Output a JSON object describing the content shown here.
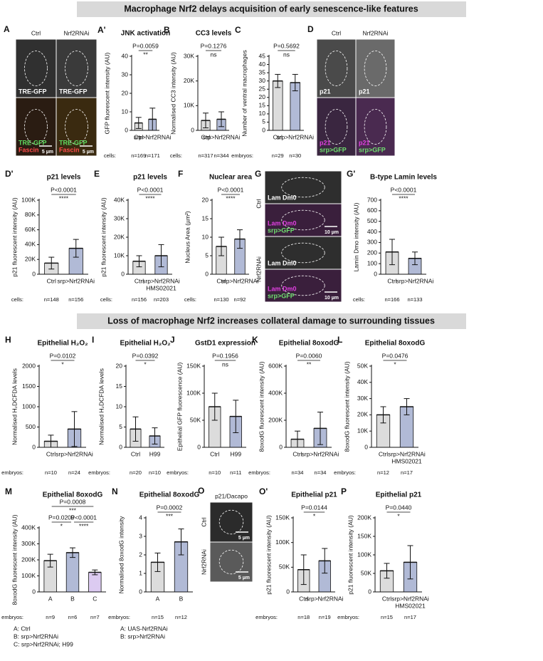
{
  "headers": [
    "Macrophage Nrf2 delays acquisition of early senescence-like features",
    "Loss of macrophage Nrf2 increases collateral damage to surrounding tissues"
  ],
  "image_panels": [
    {
      "letter": "A",
      "columns": [
        "Ctrl",
        "Nrf2RNAi"
      ],
      "rows": [],
      "tiles": [
        [
          "TRE-GFP"
        ],
        [
          "TRE-GFP"
        ],
        [
          "TRE-GFP",
          "Fascin",
          "5 µm"
        ],
        [
          "TRE-GFP",
          "Fascin",
          "5 µm"
        ]
      ]
    },
    {
      "letter": "D",
      "columns": [
        "Ctrl",
        "Nrf2RNAi"
      ],
      "rows": [],
      "tiles": [
        [
          "p21"
        ],
        [
          "p21"
        ],
        [
          "p21",
          "srp>GFP"
        ],
        [
          "p21",
          "srp>GFP"
        ]
      ]
    },
    {
      "letter": "G",
      "columns": [],
      "rows": [
        "Ctrl",
        "Nrf2RNAi"
      ],
      "tiles": [
        [
          "Lam Dm0"
        ],
        [
          "Lam Dm0",
          "srp>GFP",
          "10 µm"
        ],
        [
          "Lam Dm0"
        ],
        [
          "Lam Dm0",
          "srp>GFP",
          "10 µm"
        ]
      ]
    },
    {
      "letter": "O",
      "title": "p21/Dacapo",
      "columns": [],
      "rows": [
        "Ctrl",
        "Nrf2RNAi"
      ],
      "tiles": [
        [
          "5 µm"
        ],
        [
          "5 µm"
        ]
      ]
    }
  ],
  "chart_data": [
    {
      "type": "bar",
      "letter": "A'",
      "title": "JNK activation",
      "ylabel": "GFP fluorescent intensity (AU)",
      "categories": [
        [
          "Ctrl"
        ],
        [
          "srp>Nrf2RNAi"
        ]
      ],
      "values": [
        4,
        6
      ],
      "errors": [
        3,
        6
      ],
      "colors": [
        "#9b9b9b",
        "#1f3a8a"
      ],
      "ylim": [
        0,
        40
      ],
      "yticks": [
        0,
        10,
        20,
        30,
        40
      ],
      "n_label": "cells:",
      "n": [
        "n=169",
        "n=171"
      ],
      "comparisons": [
        {
          "p": "P=0.0059",
          "sig": "**"
        }
      ]
    },
    {
      "type": "bar",
      "letter": "B",
      "title": "CC3 levels",
      "ylabel": "Normalised CC3 intensity (AU)",
      "categories": [
        [
          "Ctrl"
        ],
        [
          "srp>Nrf2RNAi"
        ]
      ],
      "values": [
        4000,
        4500
      ],
      "errors": [
        3000,
        3000
      ],
      "colors": [
        "#9b9b9b",
        "#1f3a8a"
      ],
      "ylim": [
        0,
        30000
      ],
      "yticks": [
        0,
        {
          "value": 10000,
          "label": "10K"
        },
        {
          "value": 20000,
          "label": "20K"
        },
        {
          "value": 30000,
          "label": "30K"
        }
      ],
      "n_label": "cells:",
      "n": [
        "n=317",
        "n=344"
      ],
      "comparisons": [
        {
          "p": "P=0.1276",
          "sig": "ns"
        }
      ]
    },
    {
      "type": "bar",
      "letter": "C",
      "title": "",
      "ylabel": "Number of ventral macrophages",
      "categories": [
        [
          "Ctrl"
        ],
        [
          "srp>Nrf2RNAi"
        ]
      ],
      "values": [
        30,
        29
      ],
      "errors": [
        4,
        5
      ],
      "colors": [
        "#9b9b9b",
        "#1f3a8a"
      ],
      "ylim": [
        0,
        45
      ],
      "yticks": [
        0,
        5,
        10,
        15,
        20,
        25,
        30,
        35,
        40,
        45
      ],
      "n_label": "embryos:",
      "n": [
        "n=29",
        "n=30"
      ],
      "comparisons": [
        {
          "p": "P=0.5692",
          "sig": "ns"
        }
      ]
    },
    {
      "type": "bar",
      "letter": "D'",
      "title": "p21 levels",
      "ylabel": "p21 fluorescent intensity (AU)",
      "categories": [
        [
          "Ctrl"
        ],
        [
          "srp>Nrf2RNAi"
        ]
      ],
      "values": [
        15000,
        35000
      ],
      "errors": [
        8000,
        12000
      ],
      "colors": [
        "#9b9b9b",
        "#1f3a8a"
      ],
      "ylim": [
        0,
        100000
      ],
      "yticks": [
        0,
        {
          "value": 20000,
          "label": "20K"
        },
        {
          "value": 40000,
          "label": "40K"
        },
        {
          "value": 60000,
          "label": "60K"
        },
        {
          "value": 80000,
          "label": "80K"
        },
        {
          "value": 100000,
          "label": "100K"
        }
      ],
      "n_label": "cells:",
      "n": [
        "n=148",
        "n=156"
      ],
      "comparisons": [
        {
          "p": "P<0.0001",
          "sig": "****"
        }
      ]
    },
    {
      "type": "bar",
      "letter": "E",
      "title": "p21 levels",
      "ylabel": "p21 fluorescent intensity (AU)",
      "categories": [
        [
          "Ctrl"
        ],
        [
          "srp>Nrf2RNAi",
          "HMS02021"
        ]
      ],
      "values": [
        7000,
        10000
      ],
      "errors": [
        3000,
        6000
      ],
      "colors": [
        "#9b9b9b",
        "#1f3a8a"
      ],
      "ylim": [
        0,
        40000
      ],
      "yticks": [
        0,
        {
          "value": 10000,
          "label": "10K"
        },
        {
          "value": 20000,
          "label": "20K"
        },
        {
          "value": 30000,
          "label": "30K"
        },
        {
          "value": 40000,
          "label": "40K"
        }
      ],
      "n_label": "cells:",
      "n": [
        "n=156",
        "n=203"
      ],
      "comparisons": [
        {
          "p": "P<0.0001",
          "sig": "****"
        }
      ]
    },
    {
      "type": "bar",
      "letter": "F",
      "title": "Nuclear area",
      "ylabel": "Nucleus Area (µm²)",
      "categories": [
        [
          "Ctrl"
        ],
        [
          "srp>Nrf2RNAi"
        ]
      ],
      "values": [
        7.5,
        9.5
      ],
      "errors": [
        2.5,
        2.5
      ],
      "colors": [
        "#9b9b9b",
        "#1f3a8a"
      ],
      "ylim": [
        0,
        20
      ],
      "yticks": [
        0,
        5,
        10,
        15,
        20
      ],
      "n_label": "cells:",
      "n": [
        "n=130",
        "n=92"
      ],
      "comparisons": [
        {
          "p": "P<0.0001",
          "sig": "****"
        }
      ]
    },
    {
      "type": "bar",
      "letter": "G'",
      "title": "B-type Lamin levels",
      "ylabel": "Lamin Dmo intensity (AU)",
      "categories": [
        [
          "Ctrl"
        ],
        [
          "srp>Nrf2RNAi"
        ]
      ],
      "values": [
        210,
        150
      ],
      "errors": [
        120,
        60
      ],
      "colors": [
        "#9b9b9b",
        "#1f3a8a"
      ],
      "ylim": [
        0,
        700
      ],
      "yticks": [
        0,
        100,
        200,
        300,
        400,
        500,
        600,
        700
      ],
      "n_label": "cells:",
      "n": [
        "n=166",
        "n=133"
      ],
      "comparisons": [
        {
          "p": "P<0.0001",
          "sig": "****"
        }
      ]
    },
    {
      "type": "bar",
      "letter": "H",
      "title": "Epithelial H₂O₂",
      "ylabel": "Normalised H₂DCFDA levels",
      "categories": [
        [
          "Ctrl"
        ],
        [
          "srp>Nrf2RNAi"
        ]
      ],
      "values": [
        150,
        450
      ],
      "errors": [
        150,
        430
      ],
      "colors": [
        "#9b9b9b",
        "#1f3a8a"
      ],
      "ylim": [
        0,
        2000
      ],
      "yticks": [
        0,
        500,
        1000,
        1500,
        2000
      ],
      "n_label": "embryos:",
      "n": [
        "n=10",
        "n=24"
      ],
      "comparisons": [
        {
          "p": "P=0.0102",
          "sig": "*"
        }
      ]
    },
    {
      "type": "bar",
      "letter": "I",
      "title": "Epithelial H₂O₂",
      "ylabel": "Normalised H₂DCFDA levels",
      "categories": [
        [
          "Ctrl"
        ],
        [
          "H99"
        ]
      ],
      "values": [
        4.5,
        2.8
      ],
      "errors": [
        3,
        2
      ],
      "colors": [
        "#9b9b9b",
        "#1f3a8a"
      ],
      "ylim": [
        0,
        20
      ],
      "yticks": [
        0,
        5,
        10,
        15,
        20
      ],
      "n_label": "embryos:",
      "n": [
        "n=20",
        "n=10"
      ],
      "comparisons": [
        {
          "p": "P=0.0392",
          "sig": "*"
        }
      ]
    },
    {
      "type": "bar",
      "letter": "J",
      "title": "GstD1 expression",
      "ylabel": "Epithelial GFP fluorescence (AU)",
      "categories": [
        [
          "Ctrl"
        ],
        [
          "H99"
        ]
      ],
      "values": [
        75000,
        57000
      ],
      "errors": [
        25000,
        30000
      ],
      "colors": [
        "#9b9b9b",
        "#1f3a8a"
      ],
      "ylim": [
        0,
        150000
      ],
      "yticks": [
        0,
        {
          "value": 50000,
          "label": "50K"
        },
        {
          "value": 100000,
          "label": "100K"
        },
        {
          "value": 150000,
          "label": "150K"
        }
      ],
      "n_label": "embryos:",
      "n": [
        "n=10",
        "n=11"
      ],
      "comparisons": [
        {
          "p": "P=0.1956",
          "sig": "ns"
        }
      ]
    },
    {
      "type": "bar",
      "letter": "K",
      "title": "Epithelial 8oxodG",
      "ylabel": "8oxodG fluorescent intensity (AU)",
      "categories": [
        [
          "Ctrl"
        ],
        [
          "srp>Nrf2RNAi"
        ]
      ],
      "values": [
        60000,
        140000
      ],
      "errors": [
        60000,
        120000
      ],
      "colors": [
        "#9b9b9b",
        "#1f3a8a"
      ],
      "ylim": [
        0,
        600000
      ],
      "yticks": [
        0,
        {
          "value": 200000,
          "label": "200K"
        },
        {
          "value": 400000,
          "label": "400K"
        },
        {
          "value": 600000,
          "label": "600K"
        }
      ],
      "n_label": "embryos:",
      "n": [
        "n=34",
        "n=34"
      ],
      "comparisons": [
        {
          "p": "P=0.0060",
          "sig": "**"
        }
      ]
    },
    {
      "type": "bar",
      "letter": "L",
      "title": "Epithelial 8oxodG",
      "ylabel": "8oxodG fluorescent intensity (AU)",
      "categories": [
        [
          "Ctrl"
        ],
        [
          "srp>Nrf2RNAi",
          "HMS02021"
        ]
      ],
      "values": [
        20000,
        25000
      ],
      "errors": [
        5000,
        5000
      ],
      "colors": [
        "#9b9b9b",
        "#1f3a8a"
      ],
      "ylim": [
        0,
        50000
      ],
      "yticks": [
        0,
        {
          "value": 10000,
          "label": "10K"
        },
        {
          "value": 20000,
          "label": "20K"
        },
        {
          "value": 30000,
          "label": "30K"
        },
        {
          "value": 40000,
          "label": "40K"
        },
        {
          "value": 50000,
          "label": "50K"
        }
      ],
      "n_label": "embryos:",
      "n": [
        "n=12",
        "n=17"
      ],
      "comparisons": [
        {
          "p": "P=0.0476",
          "sig": "*"
        }
      ]
    },
    {
      "type": "bar",
      "letter": "M",
      "title": "Epithelial 8oxodG",
      "ylabel": "8oxodG fluorescent intensity (AU)",
      "categories": [
        [
          "A"
        ],
        [
          "B"
        ],
        [
          "C"
        ]
      ],
      "values": [
        195000,
        245000,
        122000
      ],
      "errors": [
        40000,
        30000,
        15000
      ],
      "colors": [
        "#9b9b9b",
        "#1f3a8a",
        "#9a6ad6"
      ],
      "ylim": [
        0,
        400000
      ],
      "yticks": [
        0,
        {
          "value": 100000,
          "label": "100K"
        },
        {
          "value": 200000,
          "label": "200K"
        },
        {
          "value": 300000,
          "label": "300K"
        },
        {
          "value": 400000,
          "label": "400K"
        }
      ],
      "n_label": "embryos:",
      "n": [
        "n=9",
        "n=6",
        "n=7"
      ],
      "comparisons": [
        {
          "pair": [
            "A",
            "B"
          ],
          "p": "P=0.0209",
          "sig": "*"
        },
        {
          "pair": [
            "B",
            "C"
          ],
          "p": "P<0.0001",
          "sig": "****"
        },
        {
          "pair": [
            "A",
            "C"
          ],
          "p": "P=0.0008",
          "sig": "***"
        }
      ],
      "legend": [
        "A: Ctrl",
        "B: srp>Nrf2RNAi",
        "C: srp>Nrf2RNAi; H99"
      ]
    },
    {
      "type": "bar",
      "letter": "N",
      "title": "Epithelial 8oxodG",
      "ylabel": "Normalised 8oxodG intensity",
      "categories": [
        [
          "A"
        ],
        [
          "B"
        ]
      ],
      "values": [
        1.6,
        2.7
      ],
      "errors": [
        0.5,
        0.7
      ],
      "colors": [
        "#9b9b9b",
        "#1f3a8a"
      ],
      "ylim": [
        0,
        4
      ],
      "yticks": [
        0,
        1,
        2,
        3,
        4
      ],
      "n_label": "embryos:",
      "n": [
        "n=15",
        "n=12"
      ],
      "comparisons": [
        {
          "p": "P=0.0002",
          "sig": "***"
        }
      ],
      "legend": [
        "A: UAS-Nrf2RNAi",
        "B: srp>Nrf2RNAi"
      ]
    },
    {
      "type": "bar",
      "letter": "O'",
      "title": "Epithelial p21",
      "ylabel": "p21 fluorescent intensity (AU)",
      "categories": [
        [
          "Ctrl"
        ],
        [
          "srp>Nrf2RNAi"
        ]
      ],
      "values": [
        45000,
        63000
      ],
      "errors": [
        30000,
        25000
      ],
      "colors": [
        "#9b9b9b",
        "#1f3a8a"
      ],
      "ylim": [
        0,
        150000
      ],
      "yticks": [
        0,
        {
          "value": 50000,
          "label": "50K"
        },
        {
          "value": 100000,
          "label": "100K"
        },
        {
          "value": 150000,
          "label": "150K"
        }
      ],
      "n_label": "embryos:",
      "n": [
        "n=18",
        "n=19"
      ],
      "comparisons": [
        {
          "p": "P=0.0144",
          "sig": "*"
        }
      ]
    },
    {
      "type": "bar",
      "letter": "P",
      "title": "Epithelial p21",
      "ylabel": "p21 fluorescent intensity (AU)",
      "categories": [
        [
          "Ctrl"
        ],
        [
          "srp>Nrf2RNAi",
          "HMS02021"
        ]
      ],
      "values": [
        57000,
        80000
      ],
      "errors": [
        20000,
        45000
      ],
      "colors": [
        "#9b9b9b",
        "#1f3a8a"
      ],
      "ylim": [
        0,
        200000
      ],
      "yticks": [
        0,
        {
          "value": 50000,
          "label": "50K"
        },
        {
          "value": 100000,
          "label": "100K"
        },
        {
          "value": 150000,
          "label": "150K"
        },
        {
          "value": 200000,
          "label": "200K"
        }
      ],
      "n_label": "embryos:",
      "n": [
        "n=15",
        "n=17"
      ],
      "comparisons": [
        {
          "p": "P=0.0440",
          "sig": "*"
        }
      ]
    }
  ]
}
